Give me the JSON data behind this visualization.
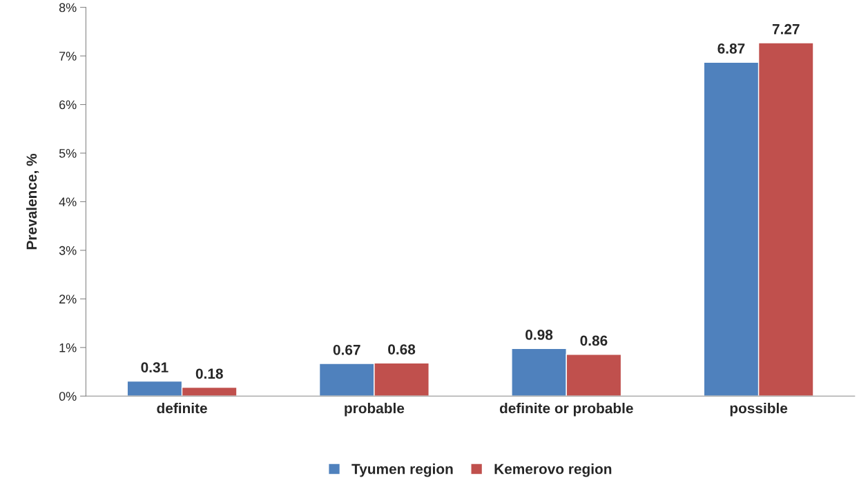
{
  "chart_data": {
    "type": "bar",
    "ylabel": "Prevalence, %",
    "categories": [
      "definite",
      "probable",
      "definite or probable",
      "possible"
    ],
    "series": [
      {
        "name": "Tyumen region",
        "color": "#4f81bd",
        "values": [
          0.31,
          0.67,
          0.98,
          6.87
        ]
      },
      {
        "name": "Kemerovo region",
        "color": "#c0504d",
        "values": [
          0.18,
          0.68,
          0.86,
          7.27
        ]
      }
    ],
    "ylim": [
      0,
      8
    ],
    "yticks": [
      {
        "value": 0,
        "label": "0%"
      },
      {
        "value": 1,
        "label": "1%"
      },
      {
        "value": 2,
        "label": "2%"
      },
      {
        "value": 3,
        "label": "3%"
      },
      {
        "value": 4,
        "label": "4%"
      },
      {
        "value": 5,
        "label": "5%"
      },
      {
        "value": 6,
        "label": "6%"
      },
      {
        "value": 7,
        "label": "7%"
      },
      {
        "value": 8,
        "label": "8%"
      }
    ],
    "data_labels": true,
    "grid": false,
    "legend": "bottom"
  }
}
